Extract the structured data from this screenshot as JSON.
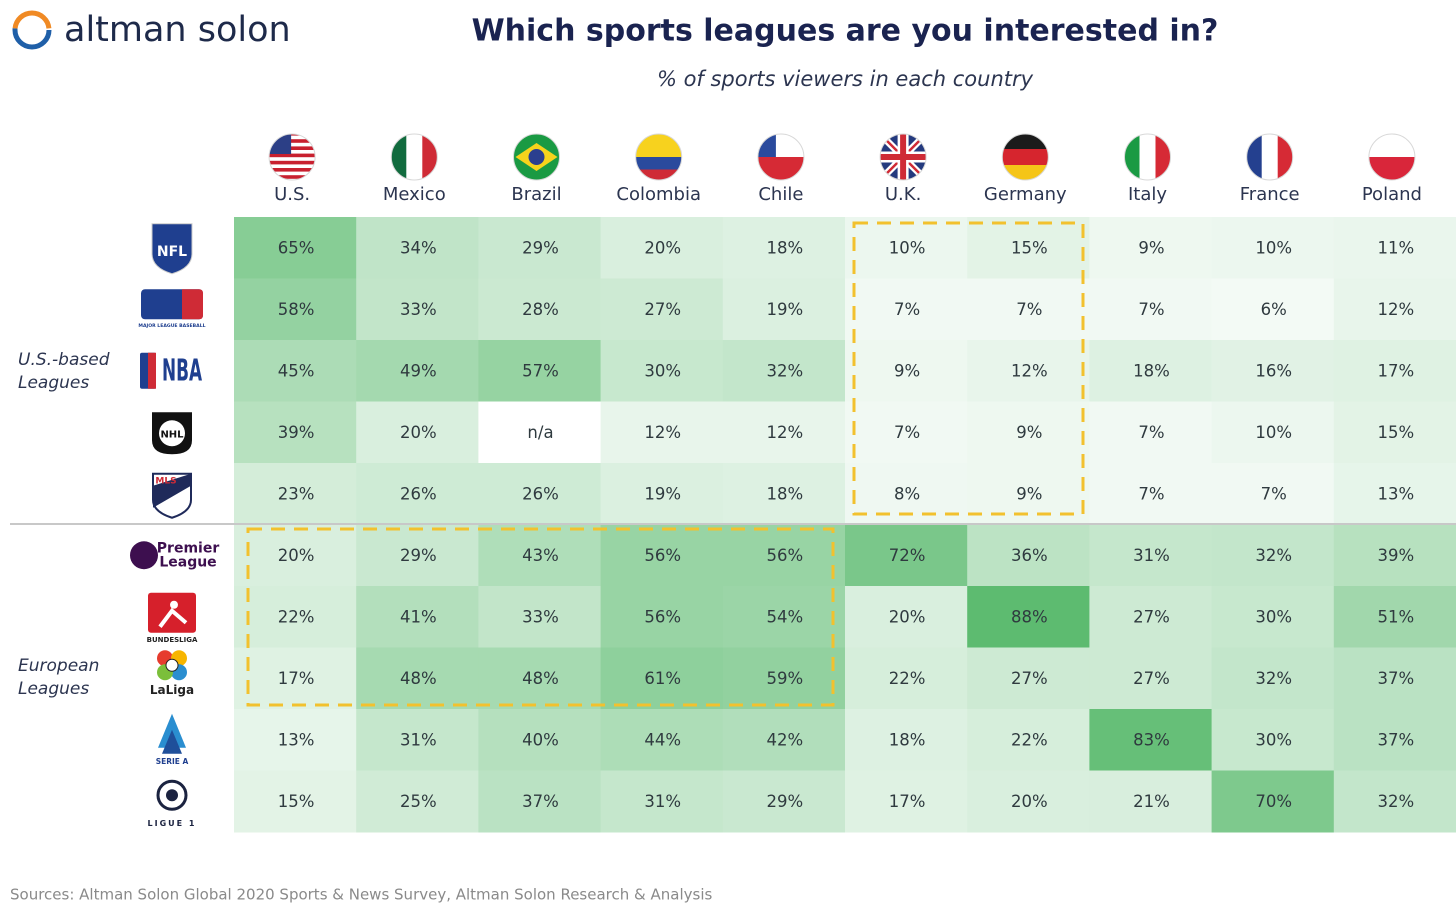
{
  "brand": "altman solon",
  "chart_data": {
    "type": "heatmap",
    "title": "Which sports leagues are you interested in?",
    "subtitle": "% of sports viewers in each country",
    "categories": [
      "U.S.",
      "Mexico",
      "Brazil",
      "Colombia",
      "Chile",
      "U.K.",
      "Germany",
      "Italy",
      "France",
      "Poland"
    ],
    "rows": [
      "NFL",
      "MAJOR LEAGUE BASEBALL",
      "NBA",
      "NHL",
      "MLS",
      "Premier League",
      "BUNDESLIGA",
      "LaLiga",
      "SERIE A",
      "LIGUE 1"
    ],
    "groups": [
      "U.S.-based Leagues",
      "European Leagues"
    ],
    "values": [
      [
        65,
        34,
        29,
        20,
        18,
        10,
        15,
        9,
        10,
        11
      ],
      [
        58,
        33,
        28,
        27,
        19,
        7,
        7,
        7,
        6,
        12
      ],
      [
        45,
        49,
        57,
        30,
        32,
        9,
        12,
        18,
        16,
        17
      ],
      [
        39,
        20,
        null,
        12,
        12,
        7,
        9,
        7,
        10,
        15
      ],
      [
        23,
        26,
        26,
        19,
        18,
        8,
        9,
        7,
        7,
        13
      ],
      [
        20,
        29,
        43,
        56,
        56,
        72,
        36,
        31,
        32,
        39
      ],
      [
        22,
        41,
        33,
        56,
        54,
        20,
        88,
        27,
        30,
        51
      ],
      [
        17,
        48,
        48,
        61,
        59,
        22,
        27,
        27,
        32,
        37
      ],
      [
        13,
        31,
        40,
        44,
        42,
        18,
        22,
        83,
        30,
        37
      ],
      [
        15,
        25,
        37,
        31,
        29,
        17,
        20,
        21,
        70,
        32
      ]
    ],
    "value_labels": [
      [
        "65%",
        "34%",
        "29%",
        "20%",
        "18%",
        "10%",
        "15%",
        "9%",
        "10%",
        "11%"
      ],
      [
        "58%",
        "33%",
        "28%",
        "27%",
        "19%",
        "7%",
        "7%",
        "7%",
        "6%",
        "12%"
      ],
      [
        "45%",
        "49%",
        "57%",
        "30%",
        "32%",
        "9%",
        "12%",
        "18%",
        "16%",
        "17%"
      ],
      [
        "39%",
        "20%",
        "n/a",
        "12%",
        "12%",
        "7%",
        "9%",
        "7%",
        "10%",
        "15%"
      ],
      [
        "23%",
        "26%",
        "26%",
        "19%",
        "18%",
        "8%",
        "9%",
        "7%",
        "7%",
        "13%"
      ],
      [
        "20%",
        "29%",
        "43%",
        "56%",
        "56%",
        "72%",
        "36%",
        "31%",
        "32%",
        "39%"
      ],
      [
        "22%",
        "41%",
        "33%",
        "56%",
        "54%",
        "20%",
        "88%",
        "27%",
        "30%",
        "51%"
      ],
      [
        "17%",
        "48%",
        "48%",
        "61%",
        "59%",
        "22%",
        "27%",
        "27%",
        "32%",
        "37%"
      ],
      [
        "13%",
        "31%",
        "40%",
        "44%",
        "42%",
        "18%",
        "22%",
        "83%",
        "30%",
        "37%"
      ],
      [
        "15%",
        "25%",
        "37%",
        "31%",
        "29%",
        "17%",
        "20%",
        "21%",
        "70%",
        "32%"
      ]
    ],
    "color_low": "#f3faf5",
    "color_high": "#5dbb70",
    "source": "Sources: Altman Solon Global 2020 Sports & News Survey, Altman Solon Research & Analysis"
  }
}
